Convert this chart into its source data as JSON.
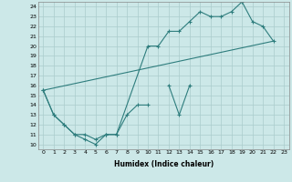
{
  "xlabel": "Humidex (Indice chaleur)",
  "background_color": "#cce8e8",
  "grid_color": "#aacccc",
  "line_color": "#2e7d7d",
  "xlim": [
    -0.5,
    23.5
  ],
  "ylim": [
    9.5,
    24.5
  ],
  "xticks": [
    0,
    1,
    2,
    3,
    4,
    5,
    6,
    7,
    8,
    9,
    10,
    11,
    12,
    13,
    14,
    15,
    16,
    17,
    18,
    19,
    20,
    21,
    22,
    23
  ],
  "yticks": [
    10,
    11,
    12,
    13,
    14,
    15,
    16,
    17,
    18,
    19,
    20,
    21,
    22,
    23,
    24
  ],
  "line1": {
    "x": [
      0,
      1,
      2,
      3,
      4,
      5,
      6,
      7,
      8,
      9,
      10,
      11,
      12,
      13,
      14
    ],
    "y": [
      15.5,
      13,
      12,
      11,
      10.5,
      10,
      11,
      11,
      13,
      14,
      14,
      null,
      16,
      13,
      16
    ]
  },
  "line2": {
    "x": [
      0,
      1,
      2,
      3,
      4,
      5,
      6,
      7,
      10,
      11,
      12,
      13,
      14,
      15,
      16,
      17,
      18,
      19,
      20,
      21,
      22
    ],
    "y": [
      15.5,
      13,
      12,
      11,
      11,
      10.5,
      11,
      11,
      20,
      20,
      21.5,
      21.5,
      22.5,
      23.5,
      23,
      23,
      23.5,
      24.5,
      22.5,
      22,
      20.5
    ]
  },
  "line3": {
    "x": [
      0,
      22
    ],
    "y": [
      15.5,
      20.5
    ]
  }
}
